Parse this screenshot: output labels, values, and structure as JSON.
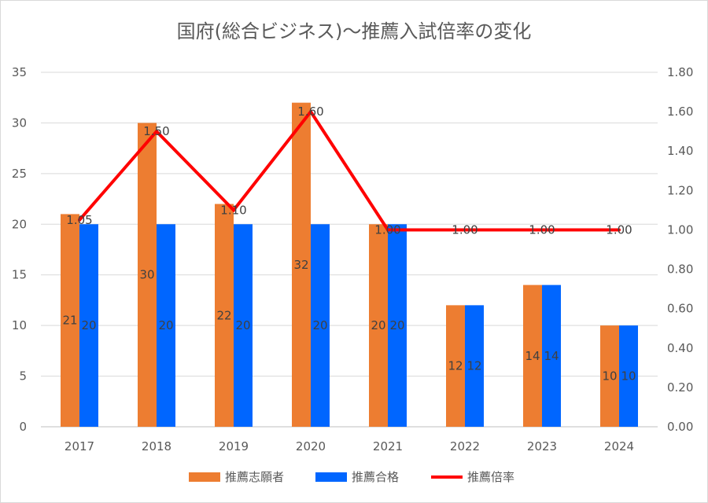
{
  "chart_data": {
    "type": "bar",
    "title": "国府(総合ビジネス)〜推薦入試倍率の変化",
    "categories": [
      "2017",
      "2018",
      "2019",
      "2020",
      "2021",
      "2022",
      "2023",
      "2024"
    ],
    "series": [
      {
        "name": "推薦志願者",
        "type": "bar",
        "axis": "left",
        "color": "#ED7D31",
        "values": [
          21,
          30,
          22,
          32,
          20,
          12,
          14,
          10
        ],
        "labels": [
          "21",
          "30",
          "22",
          "32",
          "20",
          "12",
          "14",
          "10"
        ]
      },
      {
        "name": "推薦合格",
        "type": "bar",
        "axis": "left",
        "color": "#0066FF",
        "values": [
          20,
          20,
          20,
          20,
          20,
          12,
          14,
          10
        ],
        "labels": [
          "20",
          "20",
          "20",
          "20",
          "20",
          "12",
          "14",
          "10"
        ]
      },
      {
        "name": "推薦倍率",
        "type": "line",
        "axis": "right",
        "color": "#FF0000",
        "values": [
          1.05,
          1.5,
          1.1,
          1.6,
          1.0,
          1.0,
          1.0,
          1.0
        ],
        "labels": [
          "1.05",
          "1.50",
          "1.10",
          "1.60",
          "1.00",
          "1.00",
          "1.00",
          "1.00"
        ]
      }
    ],
    "y_left": {
      "ylim": [
        0,
        35
      ],
      "ticks": [
        "0",
        "5",
        "10",
        "15",
        "20",
        "25",
        "30",
        "35"
      ]
    },
    "y_right": {
      "ylim": [
        0,
        1.8
      ],
      "ticks": [
        "0.00",
        "0.20",
        "0.40",
        "0.60",
        "0.80",
        "1.00",
        "1.20",
        "1.40",
        "1.60",
        "1.80"
      ]
    },
    "grid": true,
    "legend_position": "bottom"
  }
}
